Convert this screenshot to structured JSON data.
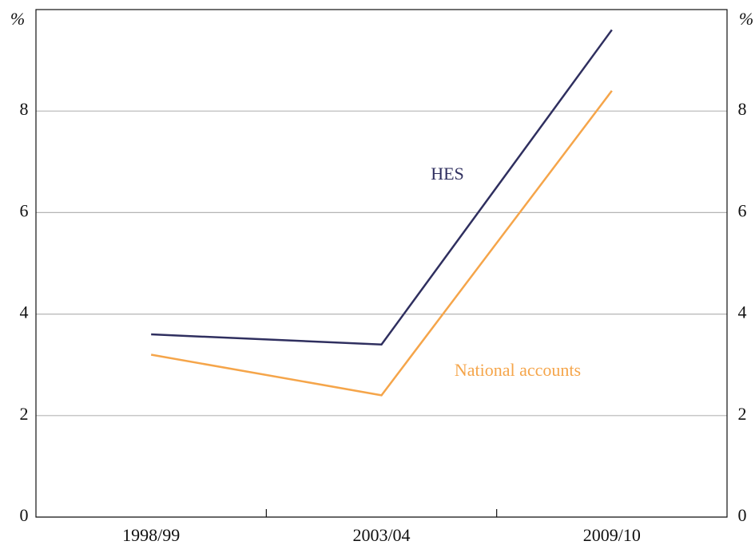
{
  "chart_data": {
    "type": "line",
    "categories": [
      "1998/99",
      "2003/04",
      "2009/10"
    ],
    "series": [
      {
        "name": "HES",
        "color": "#2f2f5f",
        "values": [
          3.6,
          3.4,
          9.6
        ]
      },
      {
        "name": "National accounts",
        "color": "#f5a54a",
        "values": [
          3.2,
          2.4,
          8.4
        ]
      }
    ],
    "y_unit": "%",
    "ylim": [
      0,
      10
    ],
    "yticks": [
      0,
      2,
      4,
      6,
      8
    ],
    "y2lim": [
      0,
      10
    ],
    "y2ticks": [
      0,
      2,
      4,
      6,
      8
    ],
    "grid": true
  }
}
